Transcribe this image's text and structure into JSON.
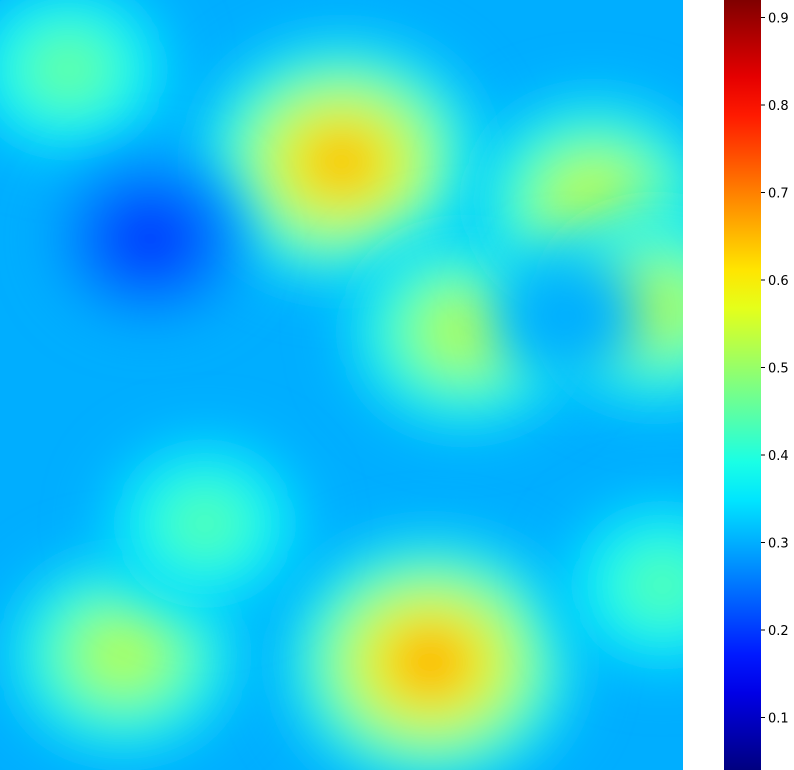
{
  "chart_data": {
    "type": "heatmap",
    "title": "",
    "xlabel": "",
    "ylabel": "",
    "colormap": "jet",
    "value_range": [
      0.04,
      0.92
    ],
    "background_value": 0.3,
    "colorbar": {
      "placement": "right",
      "ticks": [
        0.1,
        0.2,
        0.3,
        0.4,
        0.5,
        0.6,
        0.7,
        0.8,
        0.9
      ],
      "tick_labels": [
        "0.1",
        "0.2",
        "0.3",
        "0.4",
        "0.5",
        "0.6",
        "0.7",
        "0.8",
        "0.9"
      ]
    },
    "regions": [
      {
        "x": 0.5,
        "y": 0.21,
        "peak": 0.72
      },
      {
        "x": 0.63,
        "y": 0.86,
        "peak": 0.74
      },
      {
        "x": 0.1,
        "y": 0.09,
        "peak": 0.5
      },
      {
        "x": 0.18,
        "y": 0.85,
        "peak": 0.58
      },
      {
        "x": 0.3,
        "y": 0.68,
        "peak": 0.48
      },
      {
        "x": 0.68,
        "y": 0.43,
        "peak": 0.58
      },
      {
        "x": 0.87,
        "y": 0.26,
        "peak": 0.6
      },
      {
        "x": 0.96,
        "y": 0.4,
        "peak": 0.58
      },
      {
        "x": 0.97,
        "y": 0.76,
        "peak": 0.48
      },
      {
        "x": 0.22,
        "y": 0.31,
        "peak": 0.16
      },
      {
        "x": 0.83,
        "y": 0.41,
        "peak": 0.3
      }
    ]
  }
}
